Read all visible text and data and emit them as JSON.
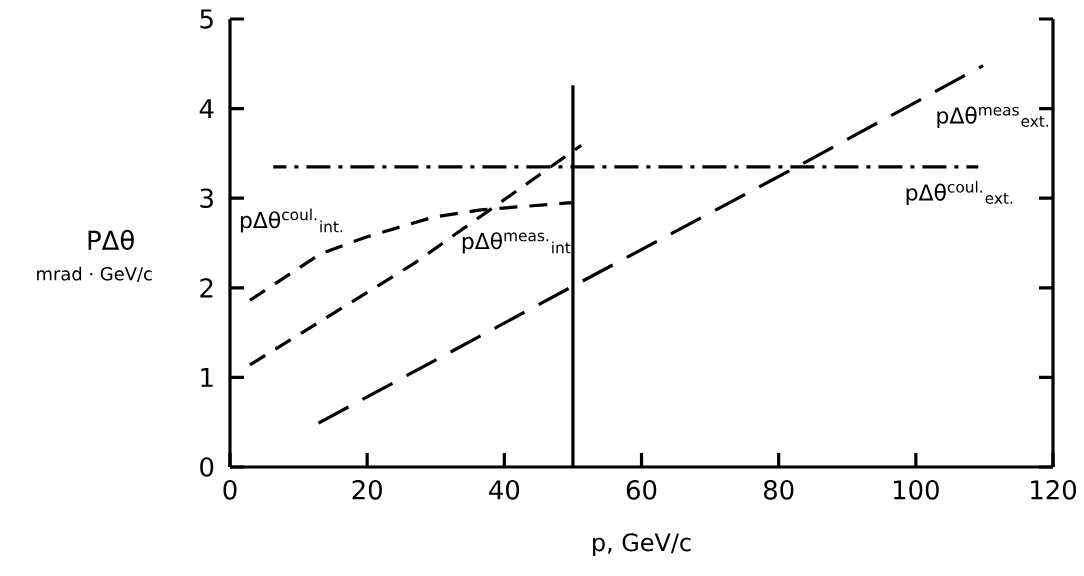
{
  "chart_data": {
    "type": "line",
    "xlabel": "p,  GeV/c",
    "ylabel": "PΔθ",
    "annotations": [
      "mrad · GeV/c",
      {
        "text": "pΔθ$^{coul.}$$_{int.}$",
        "x": 13.2,
        "y": 2.38
      },
      {
        "text": "pΔθ$^{meas.}$$_{int.}$",
        "x": 36.6,
        "y": 2.8
      },
      {
        "text": "pΔθ$^{meas}$$_{ext.}$",
        "x": 109.8,
        "y": 4.48
      },
      {
        "text": "pΔθ$^{coul.}$$_{ext.}$",
        "x": 109.1,
        "y": 3.35
      }
    ],
    "xlim": [
      0,
      120
    ],
    "ylim": [
      0,
      5
    ],
    "xticks": [
      0,
      20,
      40,
      60,
      80,
      100,
      120
    ],
    "yticks": [
      0,
      1,
      2,
      3,
      4,
      5
    ],
    "grid": false,
    "marker": "none",
    "series": [
      {
        "color": "#000000",
        "line_style": "dashed",
        "x": [
          2.9,
          13.2,
          20,
          29.7,
          36.6,
          49.8
        ],
        "values": [
          1.86,
          2.38,
          2.57,
          2.79,
          2.87,
          2.95
        ]
      },
      {
        "color": "#000000",
        "line_style": "dashed",
        "x": [
          2.9,
          26.8,
          51.2
        ],
        "values": [
          1.14,
          2.27,
          3.59
        ]
      },
      {
        "color": "#000000",
        "line_style": "dashed",
        "x": [
          12.9,
          49.8,
          82.4,
          109.8
        ],
        "values": [
          0.49,
          2.01,
          3.34,
          4.48
        ]
      },
      {
        "color": "#000000",
        "line_style": "dashdot",
        "x": [
          6.3,
          109.1
        ],
        "values": [
          3.35,
          3.35
        ]
      },
      {
        "color": "#000000",
        "line_style": "solid",
        "x": [
          50,
          50
        ],
        "values": [
          0,
          4.26
        ]
      }
    ]
  }
}
